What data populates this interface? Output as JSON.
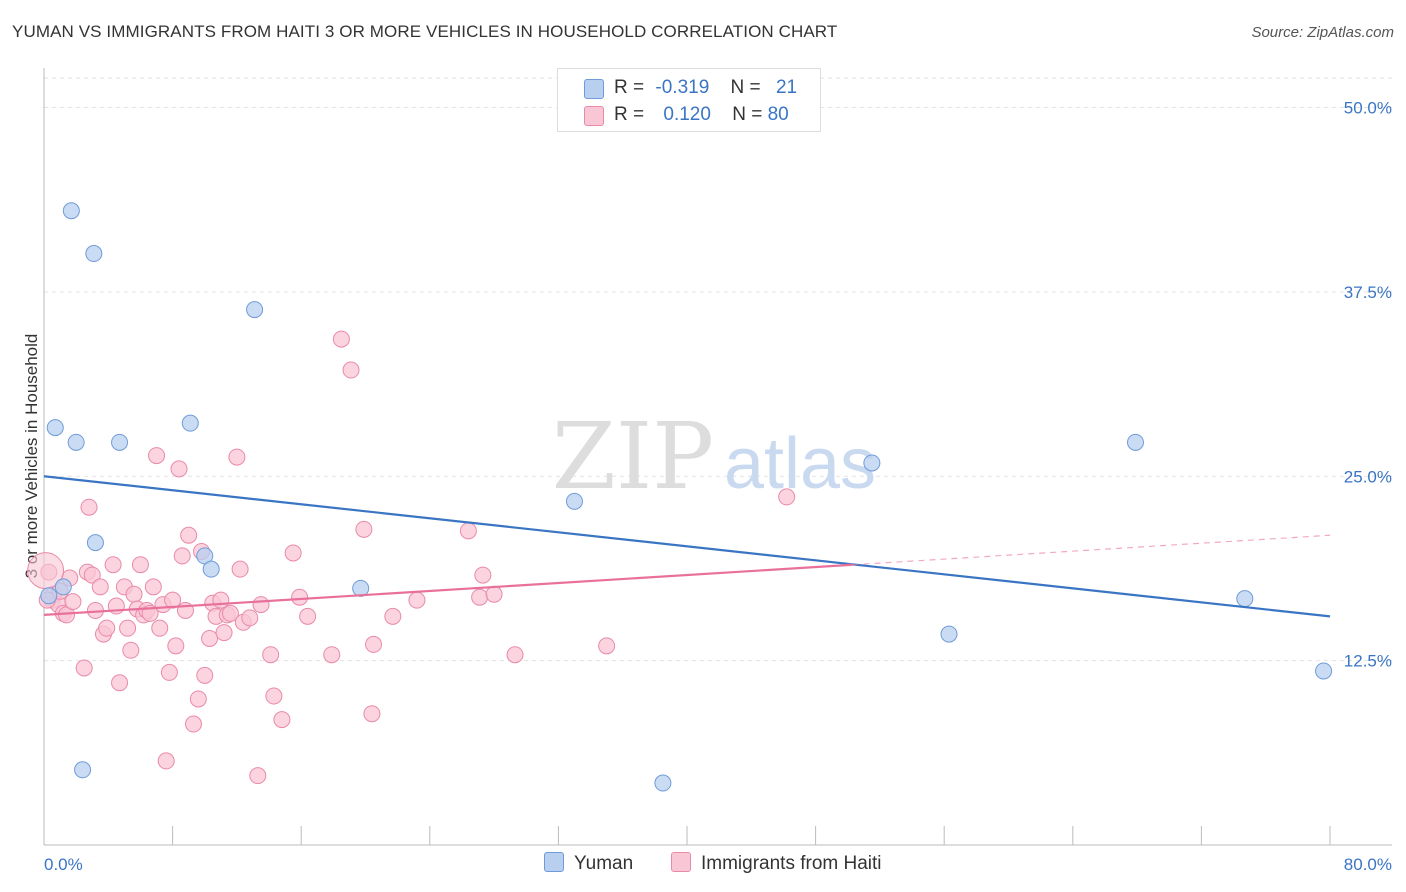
{
  "title": "YUMAN VS IMMIGRANTS FROM HAITI 3 OR MORE VEHICLES IN HOUSEHOLD CORRELATION CHART",
  "source": "Source: ZipAtlas.com",
  "watermark": {
    "zip": "ZIP",
    "atlas": "atlas"
  },
  "legend": {
    "rows": [
      {
        "r_label": "R =",
        "r_value": "-0.319",
        "n_label": "N =",
        "n_value": "21",
        "fill": "#b8cff0",
        "stroke": "#6f9bd8"
      },
      {
        "r_label": "R =",
        "r_value": "0.120",
        "n_label": "N =",
        "n_value": "80",
        "fill": "#f9c6d6",
        "stroke": "#e98aa9"
      }
    ]
  },
  "bottom_legend": [
    {
      "label": "Yuman",
      "fill": "#b8cff0",
      "stroke": "#6f9bd8"
    },
    {
      "label": "Immigrants from Haiti",
      "fill": "#f9c6d6",
      "stroke": "#e98aa9"
    }
  ],
  "chart_data": {
    "type": "scatter",
    "ylabel": "3 or more Vehicles in Household",
    "xlim": [
      0,
      80
    ],
    "ylim": [
      0,
      52
    ],
    "x_tick_labels": [
      "0.0%",
      "80.0%"
    ],
    "y_ticks": [
      12.5,
      25.0,
      37.5,
      50.0
    ],
    "y_tick_labels": [
      "12.5%",
      "25.0%",
      "37.5%",
      "50.0%"
    ],
    "grid": true,
    "colors": {
      "blue": "#3a75c4",
      "pink": "#e8709a",
      "tick_text": "#3a75c4"
    },
    "series": [
      {
        "name": "Yuman",
        "color": "#3a75c4",
        "fill": "#b8cff0",
        "stroke": "#6f9bd8",
        "points": [
          [
            1.7,
            43.0
          ],
          [
            3.1,
            40.1
          ],
          [
            13.1,
            36.3
          ],
          [
            0.7,
            28.3
          ],
          [
            2.0,
            27.3
          ],
          [
            4.7,
            27.3
          ],
          [
            9.1,
            28.6
          ],
          [
            3.2,
            20.5
          ],
          [
            10.0,
            19.6
          ],
          [
            10.4,
            18.7
          ],
          [
            1.2,
            17.5
          ],
          [
            0.3,
            16.9
          ],
          [
            19.7,
            17.4
          ],
          [
            33.0,
            23.3
          ],
          [
            51.5,
            25.9
          ],
          [
            67.9,
            27.3
          ],
          [
            74.7,
            16.7
          ],
          [
            56.3,
            14.3
          ],
          [
            79.6,
            11.8
          ],
          [
            2.4,
            5.1
          ],
          [
            38.5,
            4.2
          ]
        ],
        "trend": {
          "x": [
            0,
            80
          ],
          "y": [
            25.0,
            15.5
          ],
          "style": "solid"
        }
      },
      {
        "name": "Immigrants from Haiti",
        "color": "#e8709a",
        "fill": "#f9c6d6",
        "stroke": "#e98aa9",
        "points": [
          [
            0.3,
            18.5
          ],
          [
            0.5,
            16.6
          ],
          [
            0.6,
            17.0
          ],
          [
            0.9,
            16.3
          ],
          [
            1.2,
            15.7
          ],
          [
            1.4,
            15.6
          ],
          [
            1.6,
            18.1
          ],
          [
            1.8,
            16.5
          ],
          [
            2.5,
            12.0
          ],
          [
            2.7,
            18.5
          ],
          [
            2.8,
            22.9
          ],
          [
            3.0,
            18.3
          ],
          [
            3.2,
            15.9
          ],
          [
            3.5,
            17.5
          ],
          [
            3.7,
            14.3
          ],
          [
            3.9,
            14.7
          ],
          [
            4.3,
            19.0
          ],
          [
            4.5,
            16.2
          ],
          [
            4.7,
            11.0
          ],
          [
            5.0,
            17.5
          ],
          [
            5.2,
            14.7
          ],
          [
            5.4,
            13.2
          ],
          [
            5.6,
            17.0
          ],
          [
            5.8,
            16.0
          ],
          [
            6.0,
            19.0
          ],
          [
            6.2,
            15.6
          ],
          [
            6.4,
            15.9
          ],
          [
            6.6,
            15.7
          ],
          [
            6.8,
            17.5
          ],
          [
            7.0,
            26.4
          ],
          [
            7.2,
            14.7
          ],
          [
            7.4,
            16.3
          ],
          [
            7.6,
            5.7
          ],
          [
            7.8,
            11.7
          ],
          [
            8.0,
            16.6
          ],
          [
            8.2,
            13.5
          ],
          [
            8.4,
            25.5
          ],
          [
            8.6,
            19.6
          ],
          [
            8.8,
            15.9
          ],
          [
            9.0,
            21.0
          ],
          [
            9.3,
            8.2
          ],
          [
            9.6,
            9.9
          ],
          [
            9.8,
            19.9
          ],
          [
            10.0,
            11.5
          ],
          [
            10.3,
            14.0
          ],
          [
            10.5,
            16.4
          ],
          [
            10.7,
            15.5
          ],
          [
            11.0,
            16.6
          ],
          [
            11.2,
            14.4
          ],
          [
            11.4,
            15.6
          ],
          [
            11.6,
            15.7
          ],
          [
            12.0,
            26.3
          ],
          [
            12.2,
            18.7
          ],
          [
            12.4,
            15.1
          ],
          [
            12.8,
            15.4
          ],
          [
            13.3,
            4.7
          ],
          [
            13.5,
            16.3
          ],
          [
            14.1,
            12.9
          ],
          [
            14.3,
            10.1
          ],
          [
            14.8,
            8.5
          ],
          [
            15.5,
            19.8
          ],
          [
            15.9,
            16.8
          ],
          [
            16.4,
            15.5
          ],
          [
            17.9,
            12.9
          ],
          [
            18.5,
            34.3
          ],
          [
            19.1,
            32.2
          ],
          [
            19.9,
            21.4
          ],
          [
            20.4,
            8.9
          ],
          [
            20.5,
            13.6
          ],
          [
            21.7,
            15.5
          ],
          [
            23.2,
            16.6
          ],
          [
            26.4,
            21.3
          ],
          [
            27.1,
            16.8
          ],
          [
            27.3,
            18.3
          ],
          [
            28.0,
            17.0
          ],
          [
            29.3,
            12.9
          ],
          [
            35.0,
            13.5
          ],
          [
            46.2,
            23.6
          ],
          [
            0.2,
            16.6
          ],
          [
            1.0,
            17.2
          ]
        ],
        "trend": {
          "x": [
            0,
            50.3
          ],
          "y": [
            15.6,
            19.0
          ],
          "style": "solid",
          "ext_x": [
            50.3,
            80
          ],
          "ext_y": [
            19.0,
            21.0
          ],
          "ext_style": "dashed"
        }
      }
    ]
  }
}
